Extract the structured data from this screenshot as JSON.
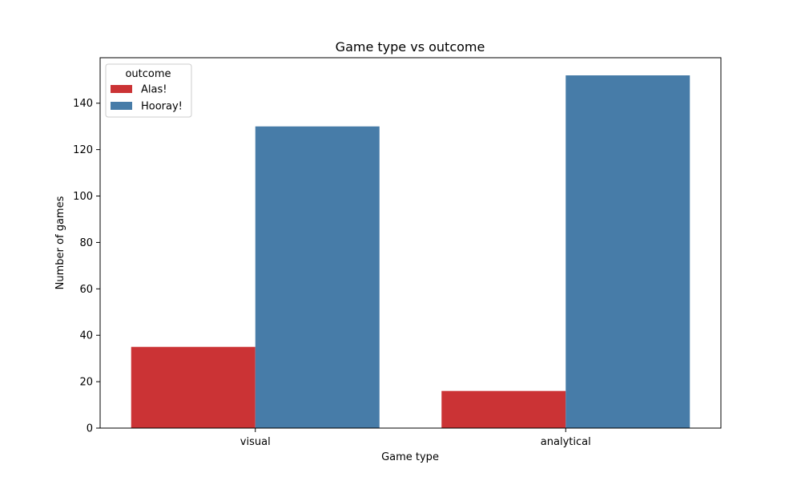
{
  "chart_data": {
    "type": "bar",
    "title": "Game type vs outcome",
    "xlabel": "Game type",
    "ylabel": "Number of games",
    "categories": [
      "visual",
      "analytical"
    ],
    "series": [
      {
        "name": "Alas!",
        "values": [
          35,
          16
        ],
        "color": "#cb3335"
      },
      {
        "name": "Hooray!",
        "values": [
          130,
          152
        ],
        "color": "#477ca8"
      }
    ],
    "ylim": [
      0,
      159.6
    ],
    "yticks": [
      0,
      20,
      40,
      60,
      80,
      100,
      120,
      140
    ],
    "legend": {
      "title": "outcome",
      "placement": "top-left"
    },
    "grid": false
  }
}
